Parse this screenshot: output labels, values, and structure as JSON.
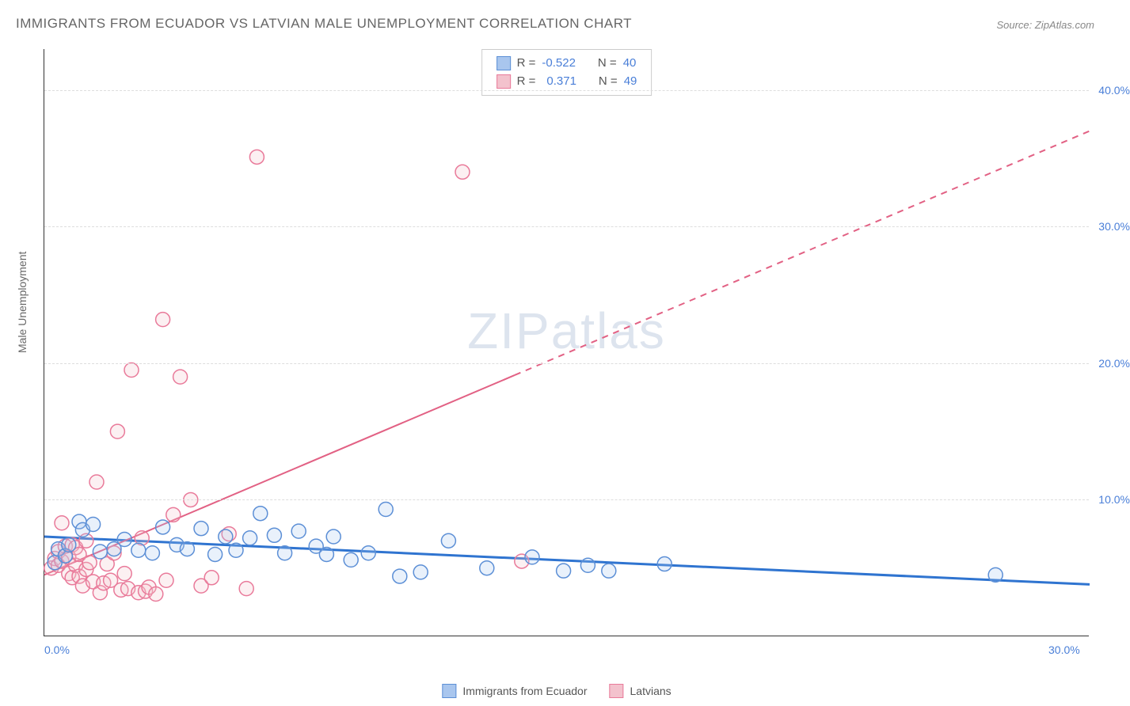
{
  "title": "IMMIGRANTS FROM ECUADOR VS LATVIAN MALE UNEMPLOYMENT CORRELATION CHART",
  "source": "Source: ZipAtlas.com",
  "ylabel": "Male Unemployment",
  "watermark_zip": "ZIP",
  "watermark_atlas": "atlas",
  "chart": {
    "type": "scatter",
    "background_color": "#ffffff",
    "grid_color": "#dddddd",
    "axis_color": "#333333",
    "xlim": [
      0,
      30
    ],
    "ylim": [
      0,
      43
    ],
    "xticks": [
      {
        "value": 0,
        "label": "0.0%"
      },
      {
        "value": 30,
        "label": "30.0%"
      }
    ],
    "yticks": [
      {
        "value": 10,
        "label": "10.0%"
      },
      {
        "value": 20,
        "label": "20.0%"
      },
      {
        "value": 30,
        "label": "30.0%"
      },
      {
        "value": 40,
        "label": "40.0%"
      }
    ],
    "tick_label_color": "#4a7fd8",
    "tick_fontsize": 14,
    "label_fontsize": 14,
    "label_color": "#666666",
    "title_fontsize": 17,
    "title_color": "#666666",
    "marker_radius": 9,
    "marker_stroke_width": 1.5,
    "marker_fill_opacity": 0.25,
    "series": [
      {
        "name": "Immigrants from Ecuador",
        "color_fill": "#a9c6ee",
        "color_stroke": "#5c8fd6",
        "R": "-0.522",
        "N": "40",
        "trend": {
          "type": "solid",
          "color": "#2f74d0",
          "width": 3,
          "x1": 0,
          "y1": 7.3,
          "x2": 30,
          "y2": 3.8
        },
        "points": [
          [
            0.3,
            5.4
          ],
          [
            0.4,
            6.4
          ],
          [
            0.6,
            5.9
          ],
          [
            0.7,
            6.7
          ],
          [
            1.0,
            8.4
          ],
          [
            1.1,
            7.8
          ],
          [
            1.4,
            8.2
          ],
          [
            1.6,
            6.2
          ],
          [
            2.0,
            6.4
          ],
          [
            2.3,
            7.1
          ],
          [
            2.7,
            6.3
          ],
          [
            3.1,
            6.1
          ],
          [
            3.4,
            8.0
          ],
          [
            3.8,
            6.7
          ],
          [
            4.1,
            6.4
          ],
          [
            4.5,
            7.9
          ],
          [
            4.9,
            6.0
          ],
          [
            5.2,
            7.3
          ],
          [
            5.5,
            6.3
          ],
          [
            5.9,
            7.2
          ],
          [
            6.2,
            9.0
          ],
          [
            6.6,
            7.4
          ],
          [
            6.9,
            6.1
          ],
          [
            7.3,
            7.7
          ],
          [
            7.8,
            6.6
          ],
          [
            8.3,
            7.3
          ],
          [
            8.8,
            5.6
          ],
          [
            9.3,
            6.1
          ],
          [
            9.8,
            9.3
          ],
          [
            10.2,
            4.4
          ],
          [
            10.8,
            4.7
          ],
          [
            11.6,
            7.0
          ],
          [
            12.7,
            5.0
          ],
          [
            14.0,
            5.8
          ],
          [
            14.9,
            4.8
          ],
          [
            15.6,
            5.2
          ],
          [
            16.2,
            4.8
          ],
          [
            17.8,
            5.3
          ],
          [
            27.3,
            4.5
          ],
          [
            8.1,
            6.0
          ]
        ]
      },
      {
        "name": "Latvians",
        "color_fill": "#f3c2cd",
        "color_stroke": "#e97a9a",
        "R": "0.371",
        "N": "49",
        "trend": {
          "type": "solid_then_dashed",
          "color": "#e26184",
          "width": 2,
          "x1": 0,
          "y1": 4.5,
          "x2": 30,
          "y2": 37.0,
          "solid_until_x": 13.5
        },
        "points": [
          [
            0.2,
            5.0
          ],
          [
            0.3,
            5.7
          ],
          [
            0.4,
            6.2
          ],
          [
            0.4,
            5.2
          ],
          [
            0.5,
            5.5
          ],
          [
            0.5,
            8.3
          ],
          [
            0.6,
            5.9
          ],
          [
            0.6,
            6.6
          ],
          [
            0.7,
            4.6
          ],
          [
            0.7,
            5.8
          ],
          [
            0.8,
            6.7
          ],
          [
            0.8,
            4.3
          ],
          [
            0.9,
            6.5
          ],
          [
            0.9,
            5.2
          ],
          [
            1.0,
            4.4
          ],
          [
            1.0,
            6.0
          ],
          [
            1.1,
            3.7
          ],
          [
            1.2,
            7.0
          ],
          [
            1.2,
            4.9
          ],
          [
            1.3,
            5.4
          ],
          [
            1.4,
            4.0
          ],
          [
            1.5,
            11.3
          ],
          [
            1.6,
            3.2
          ],
          [
            1.7,
            3.9
          ],
          [
            1.8,
            5.3
          ],
          [
            1.9,
            4.1
          ],
          [
            2.0,
            6.1
          ],
          [
            2.1,
            15.0
          ],
          [
            2.2,
            3.4
          ],
          [
            2.3,
            4.6
          ],
          [
            2.4,
            3.5
          ],
          [
            2.5,
            19.5
          ],
          [
            2.7,
            3.2
          ],
          [
            2.8,
            7.2
          ],
          [
            2.9,
            3.3
          ],
          [
            3.0,
            3.6
          ],
          [
            3.2,
            3.1
          ],
          [
            3.4,
            23.2
          ],
          [
            3.5,
            4.1
          ],
          [
            3.7,
            8.9
          ],
          [
            3.9,
            19.0
          ],
          [
            4.2,
            10.0
          ],
          [
            4.5,
            3.7
          ],
          [
            4.8,
            4.3
          ],
          [
            5.3,
            7.5
          ],
          [
            5.8,
            3.5
          ],
          [
            6.1,
            35.1
          ],
          [
            12.0,
            34.0
          ],
          [
            13.7,
            5.5
          ]
        ]
      }
    ]
  },
  "stats_box": {
    "R_label": "R =",
    "N_label": "N ="
  },
  "bottom_legend": [
    {
      "label": "Immigrants from Ecuador",
      "fill": "#a9c6ee",
      "stroke": "#5c8fd6"
    },
    {
      "label": "Latvians",
      "fill": "#f3c2cd",
      "stroke": "#e97a9a"
    }
  ]
}
